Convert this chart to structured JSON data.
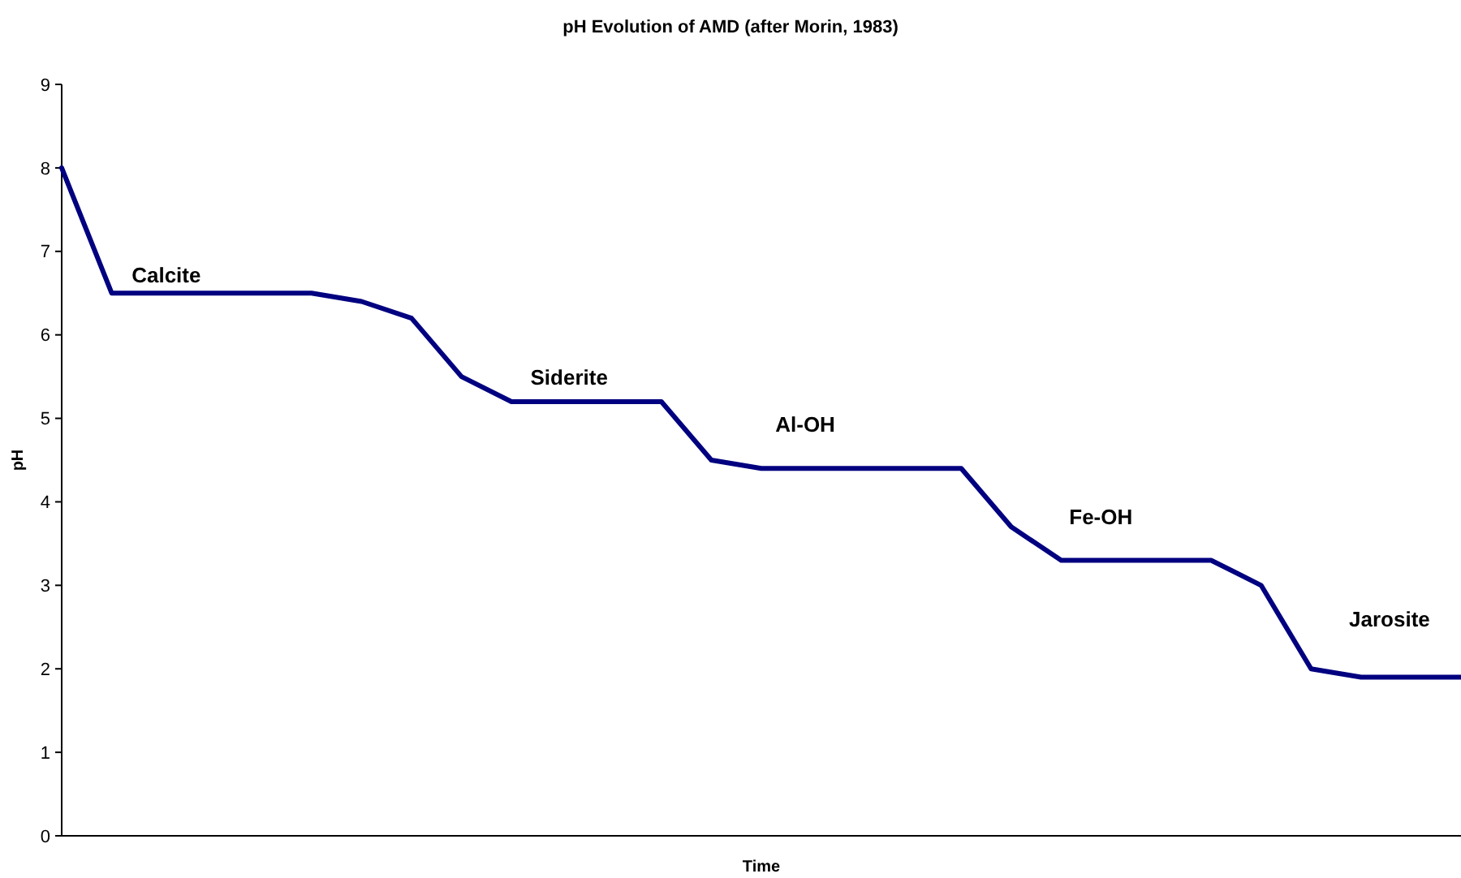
{
  "chart_data": {
    "type": "line",
    "title": "pH Evolution of AMD (after Morin, 1983)",
    "xlabel": "Time",
    "ylabel": "pH",
    "categories": [
      null,
      null,
      null,
      null,
      null,
      null,
      null,
      null,
      null,
      null,
      null,
      null,
      null,
      null,
      null,
      null,
      null,
      null,
      null,
      null,
      null,
      null,
      null,
      null,
      null,
      null,
      null,
      null,
      null
    ],
    "series": [
      {
        "color": "#000080",
        "values": [
          8,
          6.5,
          6.5,
          6.5,
          6.5,
          6.5,
          6.4,
          6.2,
          5.5,
          5.2,
          5.2,
          5.2,
          5.2,
          4.5,
          4.4,
          4.4,
          4.4,
          4.4,
          4.4,
          3.7,
          3.3,
          3.3,
          3.3,
          3.3,
          3.0,
          2.0,
          1.9,
          1.9,
          1.9
        ]
      }
    ],
    "ylim": [
      0,
      9
    ],
    "yticks": [
      0,
      1,
      2,
      3,
      4,
      5,
      6,
      7,
      8,
      9
    ],
    "grid": false,
    "marker": "none",
    "line_style": "solid",
    "annotations": [
      "Calcite",
      "Siderite",
      "Al-OH",
      "Fe-OH",
      "Jarosite"
    ]
  }
}
